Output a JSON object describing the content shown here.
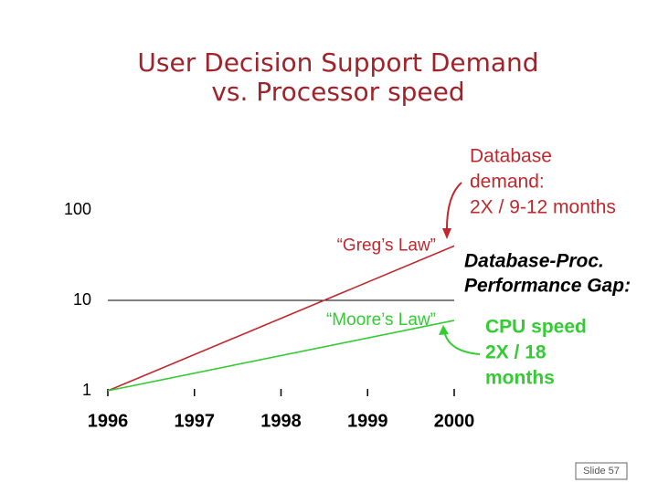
{
  "chart_data": {
    "type": "line",
    "title": [
      "User Decision Support Demand",
      "vs. Processor speed"
    ],
    "x": [
      1996,
      2000
    ],
    "xlim": [
      1996,
      2000
    ],
    "xticks": [
      1996,
      1997,
      1998,
      1999,
      2000
    ],
    "ylim": [
      1,
      100
    ],
    "yticks": [
      1,
      10,
      100
    ],
    "log_y": true,
    "reference_line": 10,
    "series": [
      {
        "name": "“Greg’s Law”",
        "color": "#c0282d",
        "values": [
          1,
          40
        ]
      },
      {
        "name": "“Moore’s Law”",
        "color": "#33cc33",
        "values": [
          1,
          6
        ]
      }
    ],
    "annotations": {
      "database_demand": [
        "Database",
        "demand:",
        "2X / 9-12 months"
      ],
      "gap": [
        "Database-Proc.",
        "Performance Gap:"
      ],
      "cpu_speed": [
        "CPU speed",
        "2X /  18",
        "months"
      ]
    },
    "slide_number": "Slide 57"
  }
}
